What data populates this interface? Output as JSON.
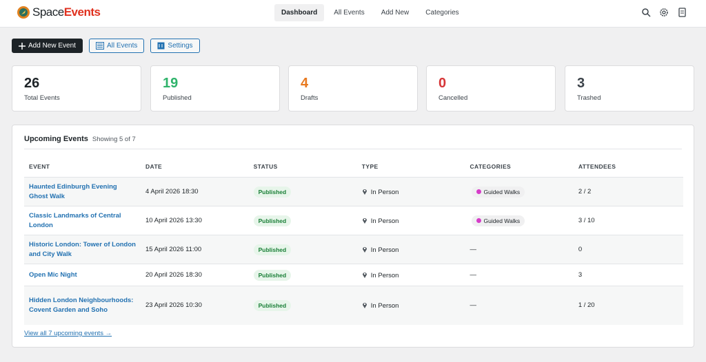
{
  "header": {
    "brand": {
      "first": "Space",
      "second": "Events"
    },
    "nav": [
      "Dashboard",
      "All Events",
      "Add New",
      "Categories"
    ]
  },
  "toolbar": [
    "Add New Event",
    "All Events",
    "Settings"
  ],
  "stats": [
    {
      "value": 26,
      "label": "Total Events"
    },
    {
      "value": 19,
      "label": "Published"
    },
    {
      "value": 4,
      "label": "Drafts"
    },
    {
      "value": 0,
      "label": "Cancelled"
    },
    {
      "value": 3,
      "label": "Trashed"
    }
  ],
  "upcoming": {
    "title": "Upcoming Events",
    "showing": "Showing 5 of 7",
    "columns": [
      "EVENT",
      "DATE",
      "STATUS",
      "TYPE",
      "CATEGORIES",
      "ATTENDEES"
    ],
    "rows": [
      [
        "Haunted Edinburgh Evening Ghost Walk",
        "4 April 2026 18:30",
        "Published",
        "In Person",
        "Guided Walks",
        "2 / 2"
      ],
      [
        "Classic Landmarks of Central London",
        "10 April 2026 13:30",
        "Published",
        "In Person",
        "Guided Walks",
        "3 / 10"
      ],
      [
        "Historic London: Tower of London and City Walk",
        "15 April 2026 11:00",
        "Published",
        "In Person",
        "—",
        "0"
      ],
      [
        "Open Mic Night",
        "20 April 2026 18:30",
        "Published",
        "In Person",
        "—",
        "3"
      ],
      [
        "Hidden London Neighbourhoods: Covent Garden and Soho",
        "23 April 2026 10:30",
        "Published",
        "In Person",
        "—",
        "1 / 20"
      ]
    ],
    "footer_link": "View all 7 upcoming events →"
  }
}
